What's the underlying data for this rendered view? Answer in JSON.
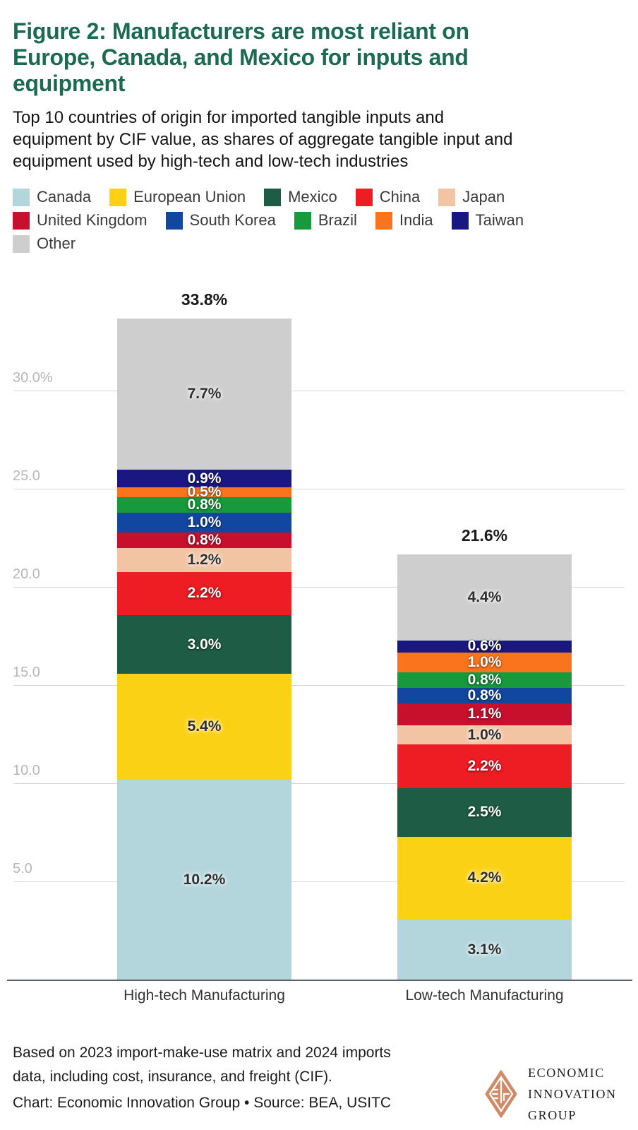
{
  "header": {
    "title_lines": [
      "Figure 2: Manufacturers are most reliant on",
      "Europe, Canada, and Mexico for inputs and",
      "equipment"
    ],
    "subtitle_lines": [
      "Top 10 countries of origin for imported tangible inputs and",
      "equipment by CIF value, as shares of aggregate tangible input and",
      "equipment used by high-tech and low-tech industries"
    ],
    "title_color": "#1d6a52"
  },
  "legend": {
    "rows": [
      [
        {
          "label": "Canada",
          "color": "#b2d6dc"
        },
        {
          "label": "European Union",
          "color": "#fbd116"
        },
        {
          "label": "Mexico",
          "color": "#1f5c46"
        },
        {
          "label": "China",
          "color": "#ee1c23"
        },
        {
          "label": "Japan",
          "color": "#f2c4a3"
        }
      ],
      [
        {
          "label": "United Kingdom",
          "color": "#c8102e"
        },
        {
          "label": "South Korea",
          "color": "#12479f"
        },
        {
          "label": "Brazil",
          "color": "#169a3c"
        },
        {
          "label": "India",
          "color": "#f9741d"
        },
        {
          "label": "Taiwan",
          "color": "#181880"
        }
      ],
      [
        {
          "label": "Other",
          "color": "#cecece"
        }
      ]
    ]
  },
  "chart_data": {
    "type": "bar",
    "stacked": true,
    "unit": "%",
    "categories": [
      "High-tech Manufacturing",
      "Low-tech Manufacturing"
    ],
    "total_labels": [
      "33.8%",
      "21.6%"
    ],
    "series": [
      {
        "name": "Canada",
        "color": "#b2d6dc",
        "text": "dark",
        "values": [
          10.2,
          3.1
        ],
        "labels": [
          "10.2%",
          "3.1%"
        ]
      },
      {
        "name": "European Union",
        "color": "#fbd116",
        "text": "dark",
        "values": [
          5.4,
          4.2
        ],
        "labels": [
          "5.4%",
          "4.2%"
        ]
      },
      {
        "name": "Mexico",
        "color": "#1f5c46",
        "text": "light",
        "values": [
          3.0,
          2.5
        ],
        "labels": [
          "3.0%",
          "2.5%"
        ]
      },
      {
        "name": "China",
        "color": "#ee1c23",
        "text": "light",
        "values": [
          2.2,
          2.2
        ],
        "labels": [
          "2.2%",
          "2.2%"
        ]
      },
      {
        "name": "Japan",
        "color": "#f2c4a3",
        "text": "dark",
        "values": [
          1.2,
          1.0
        ],
        "labels": [
          "1.2%",
          "1.0%"
        ]
      },
      {
        "name": "United Kingdom",
        "color": "#c8102e",
        "text": "light",
        "values": [
          0.8,
          1.1
        ],
        "labels": [
          "0.8%",
          "1.1%"
        ]
      },
      {
        "name": "South Korea",
        "color": "#12479f",
        "text": "light",
        "values": [
          1.0,
          0.8
        ],
        "labels": [
          "1.0%",
          "0.8%"
        ]
      },
      {
        "name": "Brazil",
        "color": "#169a3c",
        "text": "light",
        "values": [
          0.8,
          0.8
        ],
        "labels": [
          "0.8%",
          "0.8%"
        ]
      },
      {
        "name": "India",
        "color": "#f9741d",
        "text": "light",
        "values": [
          0.5,
          1.0
        ],
        "labels": [
          "0.5%",
          "1.0%"
        ]
      },
      {
        "name": "Taiwan",
        "color": "#181880",
        "text": "light",
        "values": [
          0.9,
          0.6
        ],
        "labels": [
          "0.9%",
          "0.6%"
        ]
      },
      {
        "name": "Other",
        "color": "#cecece",
        "text": "dark",
        "values": [
          7.7,
          4.4
        ],
        "labels": [
          "7.7%",
          "4.4%"
        ]
      }
    ],
    "yticks": [
      {
        "value": 5,
        "label": "5.0"
      },
      {
        "value": 10,
        "label": "10.0"
      },
      {
        "value": 15,
        "label": "15.0"
      },
      {
        "value": 20,
        "label": "20.0"
      },
      {
        "value": 25,
        "label": "25.0"
      },
      {
        "value": 30,
        "label": "30.0%"
      }
    ],
    "ylim": [
      0,
      35
    ],
    "grid": true,
    "legend_position": "top"
  },
  "footer": {
    "note_lines": [
      "Based on 2023 import-make-use matrix and 2024 imports",
      "data, including cost, insurance, and freight (CIF)."
    ],
    "credit": "Chart: Economic Innovation Group • Source: BEA, USITC"
  },
  "logo": {
    "text_lines": [
      "ECONOMIC",
      "INNOVATION",
      "GROUP"
    ],
    "color": "#cf8a68"
  }
}
